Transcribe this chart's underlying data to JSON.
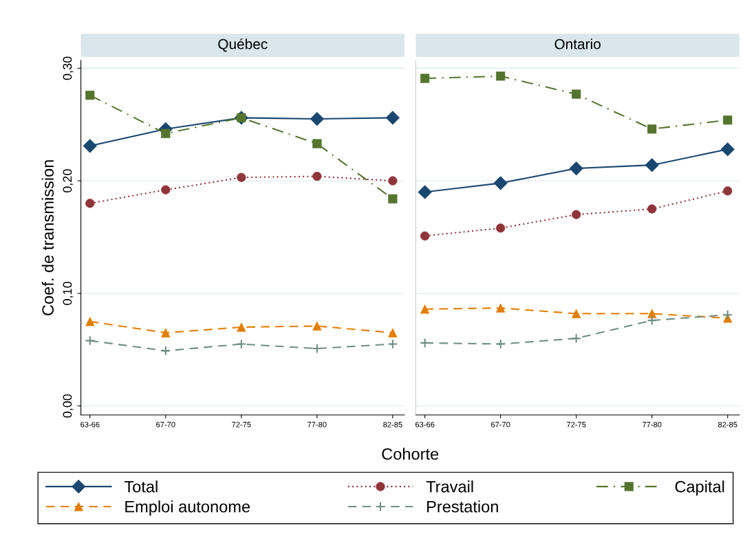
{
  "chart_data": [
    {
      "type": "line",
      "title": "Québec",
      "xlabel": "Cohorte",
      "ylabel": "Coef. de transmission",
      "categories": [
        "63-66",
        "67-70",
        "72-75",
        "77-80",
        "82-85"
      ],
      "ylim": [
        -0.008,
        0.307
      ],
      "yticks": [
        {
          "value": 0,
          "label": "0,00"
        },
        {
          "value": 0.1,
          "label": "0,10"
        },
        {
          "value": 0.2,
          "label": "0,20"
        },
        {
          "value": 0.3,
          "label": "0,30"
        }
      ],
      "grid": "y",
      "legend": "bottom",
      "series": [
        {
          "name": "Total",
          "color": "#1a476f",
          "marker": "diamond",
          "line_style": "solid",
          "values": [
            0.231,
            0.246,
            0.256,
            0.255,
            0.256
          ]
        },
        {
          "name": "Travail",
          "color": "#90353b",
          "marker": "circle",
          "line_style": "dotted",
          "values": [
            0.18,
            0.192,
            0.203,
            0.204,
            0.2
          ]
        },
        {
          "name": "Capital",
          "color": "#55752f",
          "marker": "square",
          "line_style": "dashdot",
          "values": [
            0.276,
            0.242,
            0.256,
            0.233,
            0.184
          ]
        },
        {
          "name": "Emploi autonome",
          "color": "#e37e00",
          "marker": "triangle",
          "line_style": "dashed",
          "values": [
            0.075,
            0.065,
            0.07,
            0.071,
            0.065
          ]
        },
        {
          "name": "Prestation",
          "color": "#6e8e84",
          "marker": "cross",
          "line_style": "dashed",
          "values": [
            0.058,
            0.049,
            0.055,
            0.051,
            0.055
          ]
        }
      ]
    },
    {
      "type": "line",
      "title": "Ontario",
      "categories": [
        "63-66",
        "67-70",
        "72-75",
        "77-80",
        "82-85"
      ],
      "ylim": [
        -0.008,
        0.307
      ],
      "yticks": [
        {
          "value": 0,
          "label": null
        },
        {
          "value": 0.1,
          "label": null
        },
        {
          "value": 0.2,
          "label": null
        },
        {
          "value": 0.3,
          "label": null
        }
      ],
      "grid": "y",
      "tick_labels": "x",
      "series": [
        {
          "color": "#1a476f",
          "marker": "diamond",
          "line_style": "solid",
          "values": [
            0.19,
            0.198,
            0.211,
            0.214,
            0.228
          ]
        },
        {
          "color": "#90353b",
          "marker": "circle",
          "line_style": "dotted",
          "values": [
            0.151,
            0.158,
            0.17,
            0.175,
            0.191
          ]
        },
        {
          "color": "#55752f",
          "marker": "square",
          "line_style": "dashdot",
          "values": [
            0.291,
            0.293,
            0.277,
            0.246,
            0.254
          ]
        },
        {
          "color": "#e37e00",
          "marker": "triangle",
          "line_style": "dashed",
          "values": [
            0.086,
            0.087,
            0.082,
            0.082,
            0.078
          ]
        },
        {
          "color": "#6e8e84",
          "marker": "cross",
          "line_style": "dashed",
          "values": [
            0.056,
            0.055,
            0.06,
            0.076,
            0.081
          ]
        }
      ]
    }
  ]
}
